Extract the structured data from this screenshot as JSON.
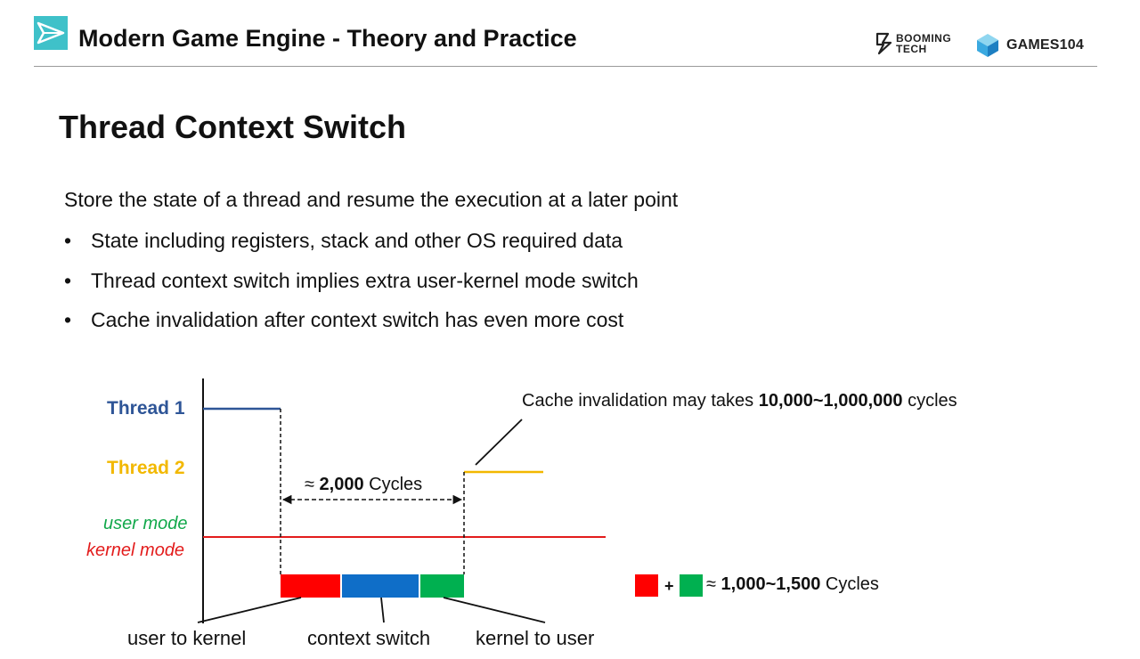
{
  "header": {
    "course_title": "Modern Game Engine - Theory and Practice",
    "brand_booming_line1": "BOOMING",
    "brand_booming_line2": "TECH",
    "brand_games": "GAMES104",
    "logo_icon": "paper-plane-icon",
    "accent_color": "#3fc1c9"
  },
  "slide": {
    "title": "Thread Context Switch",
    "intro": "Store the state of a thread and resume the execution at a later point",
    "bullets": [
      "State including registers, stack and other OS required data",
      "Thread context switch implies extra user-kernel mode switch",
      "Cache invalidation after context switch has even more cost"
    ],
    "bullet_glyph": "•"
  },
  "diagram": {
    "thread1_label": "Thread 1",
    "thread2_label": "Thread 2",
    "user_mode_label": "user mode",
    "kernel_mode_label": "kernel mode",
    "cycles_prefix": "≈ ",
    "cycles_value": "2,000",
    "cycles_suffix": " Cycles",
    "cache_prefix": "Cache invalidation may takes ",
    "cache_value": "10,000~1,000,000",
    "cache_suffix": " cycles",
    "user_to_kernel": "user to kernel",
    "context_switch": "context switch",
    "kernel_to_user": "kernel to user",
    "legend_plus": "+",
    "legend_prefix": "≈ ",
    "legend_value": "1,000~1,500",
    "legend_suffix": " Cycles",
    "colors": {
      "thread1": "#2e5597",
      "thread2": "#f2b800",
      "user_mode": "#11a84a",
      "kernel_mode": "#e31c1c",
      "user_to_kernel_block": "#ff0000",
      "context_switch_block": "#0f6ec8",
      "kernel_to_user_block": "#00b050"
    }
  }
}
